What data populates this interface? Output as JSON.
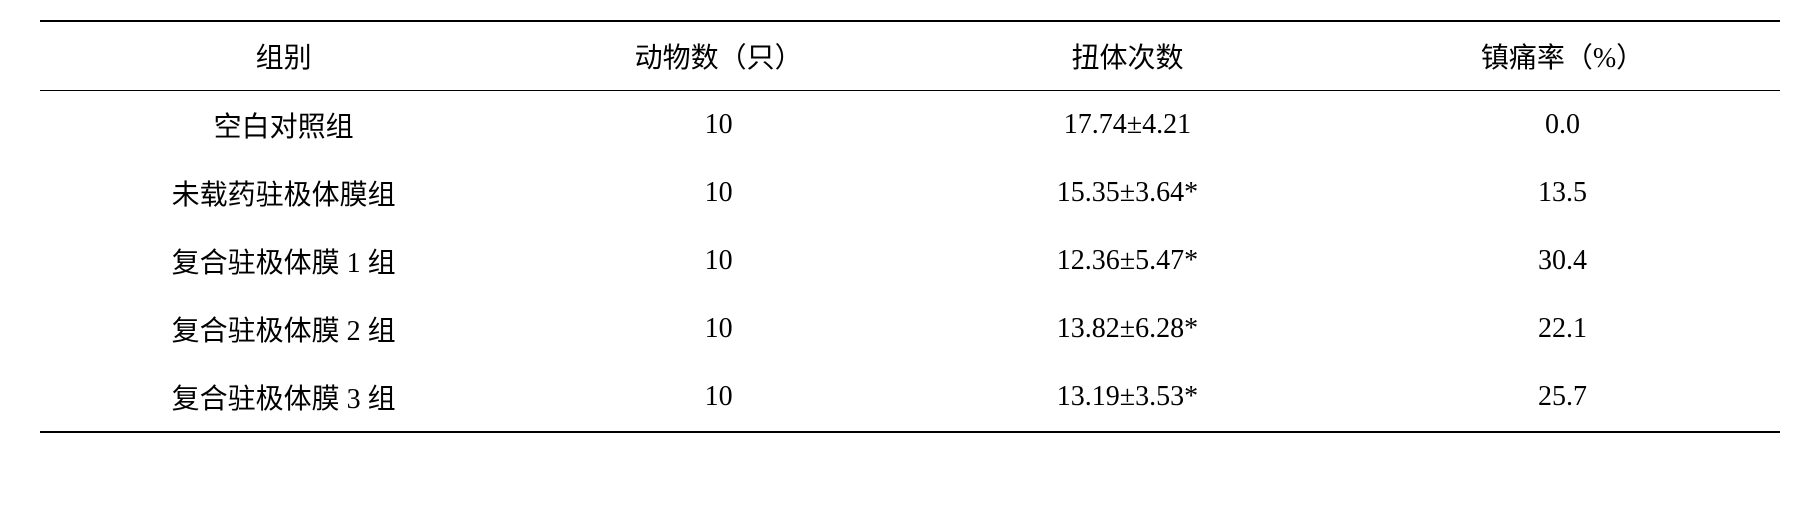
{
  "table": {
    "columns": [
      {
        "key": "group",
        "label": "组别"
      },
      {
        "key": "n",
        "label": "动物数（只）"
      },
      {
        "key": "twist",
        "label": "扭体次数"
      },
      {
        "key": "rate",
        "label": "镇痛率（%）"
      }
    ],
    "rows": [
      {
        "group": "空白对照组",
        "n": "10",
        "twist": "17.74±4.21",
        "rate": "0.0"
      },
      {
        "group": "未载药驻极体膜组",
        "n": "10",
        "twist": "15.35±3.64*",
        "rate": "13.5"
      },
      {
        "group": "复合驻极体膜 1 组",
        "n": "10",
        "twist": "12.36±5.47*",
        "rate": "30.4"
      },
      {
        "group": "复合驻极体膜 2 组",
        "n": "10",
        "twist": "13.82±6.28*",
        "rate": "22.1"
      },
      {
        "group": "复合驻极体膜 3 组",
        "n": "10",
        "twist": "13.19±3.53*",
        "rate": "25.7"
      }
    ]
  }
}
